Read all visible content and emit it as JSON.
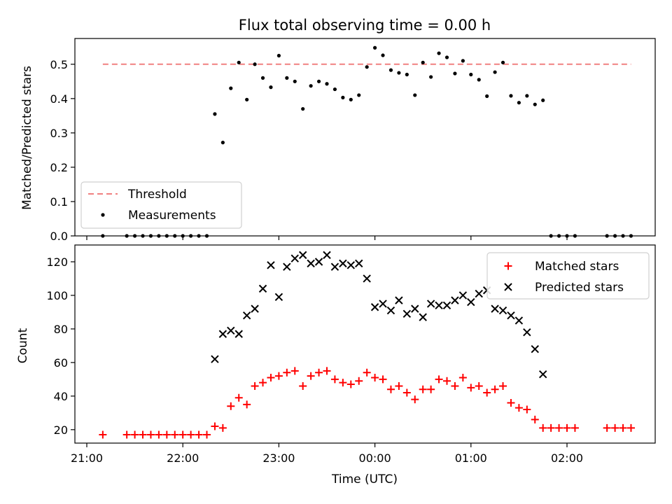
{
  "chart_data": [
    {
      "type": "scatter",
      "title": "Flux total observing time = 0.00 h",
      "xlabel": "",
      "ylabel": "Matched/Predicted stars",
      "ylim": [
        0,
        0.575
      ],
      "yticks": [
        "0.0",
        "0.1",
        "0.2",
        "0.3",
        "0.4",
        "0.5"
      ],
      "legend_position": "lower-left",
      "threshold": {
        "name": "Threshold",
        "value": 0.5,
        "x_start": "21:10",
        "x_end": "02:40",
        "color": "#f08080",
        "style": "dashed"
      },
      "series": [
        {
          "name": "Measurements",
          "color": "#000000",
          "marker": "dot",
          "x": [
            "21:10",
            "21:25",
            "21:30",
            "21:35",
            "21:40",
            "21:45",
            "21:50",
            "21:55",
            "22:00",
            "22:05",
            "22:10",
            "22:15",
            "22:20",
            "22:25",
            "22:30",
            "22:35",
            "22:40",
            "22:45",
            "22:50",
            "22:55",
            "23:00",
            "23:05",
            "23:10",
            "23:15",
            "23:20",
            "23:25",
            "23:30",
            "23:35",
            "23:40",
            "23:45",
            "23:50",
            "23:55",
            "00:00",
            "00:05",
            "00:10",
            "00:15",
            "00:20",
            "00:25",
            "00:30",
            "00:35",
            "00:40",
            "00:45",
            "00:50",
            "00:55",
            "01:00",
            "01:05",
            "01:10",
            "01:15",
            "01:20",
            "01:25",
            "01:30",
            "01:35",
            "01:40",
            "01:45",
            "01:50",
            "01:55",
            "02:00",
            "02:05",
            "02:25",
            "02:30",
            "02:35",
            "02:40"
          ],
          "y": [
            0,
            0,
            0,
            0,
            0,
            0,
            0,
            0,
            0,
            0,
            0,
            0,
            0.355,
            0.272,
            0.43,
            0.505,
            0.397,
            0.5,
            0.46,
            0.433,
            0.525,
            0.46,
            0.45,
            0.37,
            0.437,
            0.45,
            0.443,
            0.427,
            0.403,
            0.397,
            0.41,
            0.492,
            0.548,
            0.526,
            0.483,
            0.475,
            0.47,
            0.41,
            0.505,
            0.463,
            0.532,
            0.52,
            0.473,
            0.51,
            0.47,
            0.455,
            0.407,
            0.477,
            0.505,
            0.408,
            0.388,
            0.408,
            0.383,
            0.395,
            0,
            0,
            0,
            0,
            0,
            0,
            0,
            0
          ]
        }
      ]
    },
    {
      "type": "scatter",
      "title": "",
      "xlabel": "Time (UTC)",
      "ylabel": "Count",
      "ylim": [
        12,
        130
      ],
      "yticks": [
        "20",
        "40",
        "60",
        "80",
        "100",
        "120"
      ],
      "x_ticks": [
        "21:00",
        "22:00",
        "23:00",
        "00:00",
        "01:00",
        "02:00"
      ],
      "legend_position": "upper-right",
      "series": [
        {
          "name": "Matched stars",
          "color": "#ff0000",
          "marker": "plus",
          "x": [
            "21:10",
            "21:25",
            "21:30",
            "21:35",
            "21:40",
            "21:45",
            "21:50",
            "21:55",
            "22:00",
            "22:05",
            "22:10",
            "22:15",
            "22:20",
            "22:25",
            "22:30",
            "22:35",
            "22:40",
            "22:45",
            "22:50",
            "22:55",
            "23:00",
            "23:05",
            "23:10",
            "23:15",
            "23:20",
            "23:25",
            "23:30",
            "23:35",
            "23:40",
            "23:45",
            "23:50",
            "23:55",
            "00:00",
            "00:05",
            "00:10",
            "00:15",
            "00:20",
            "00:25",
            "00:30",
            "00:35",
            "00:40",
            "00:45",
            "00:50",
            "00:55",
            "01:00",
            "01:05",
            "01:10",
            "01:15",
            "01:20",
            "01:25",
            "01:30",
            "01:35",
            "01:40",
            "01:45",
            "01:50",
            "01:55",
            "02:00",
            "02:05",
            "02:25",
            "02:30",
            "02:35",
            "02:40"
          ],
          "y": [
            17,
            17,
            17,
            17,
            17,
            17,
            17,
            17,
            17,
            17,
            17,
            17,
            22,
            21,
            34,
            39,
            35,
            46,
            48,
            51,
            52,
            54,
            55,
            46,
            52,
            54,
            55,
            50,
            48,
            47,
            49,
            54,
            51,
            50,
            44,
            46,
            42,
            38,
            44,
            44,
            50,
            49,
            46,
            51,
            45,
            46,
            42,
            44,
            46,
            36,
            33,
            32,
            26,
            21,
            21,
            21,
            21,
            21,
            21,
            21,
            21,
            21
          ]
        },
        {
          "name": "Predicted stars",
          "color": "#000000",
          "marker": "x",
          "x": [
            "22:20",
            "22:25",
            "22:30",
            "22:35",
            "22:40",
            "22:45",
            "22:50",
            "22:55",
            "23:00",
            "23:05",
            "23:10",
            "23:15",
            "23:20",
            "23:25",
            "23:30",
            "23:35",
            "23:40",
            "23:45",
            "23:50",
            "23:55",
            "00:00",
            "00:05",
            "00:10",
            "00:15",
            "00:20",
            "00:25",
            "00:30",
            "00:35",
            "00:40",
            "00:45",
            "00:50",
            "00:55",
            "01:00",
            "01:05",
            "01:10",
            "01:15",
            "01:20",
            "01:25",
            "01:30",
            "01:35",
            "01:40",
            "01:45"
          ],
          "y": [
            62,
            77,
            79,
            77,
            88,
            92,
            104,
            118,
            99,
            117,
            122,
            124,
            119,
            120,
            124,
            117,
            119,
            118,
            119,
            110,
            93,
            95,
            91,
            97,
            89,
            92,
            87,
            95,
            94,
            94,
            97,
            100,
            96,
            101,
            103,
            92,
            91,
            88,
            85,
            78,
            68,
            53
          ]
        }
      ]
    }
  ]
}
